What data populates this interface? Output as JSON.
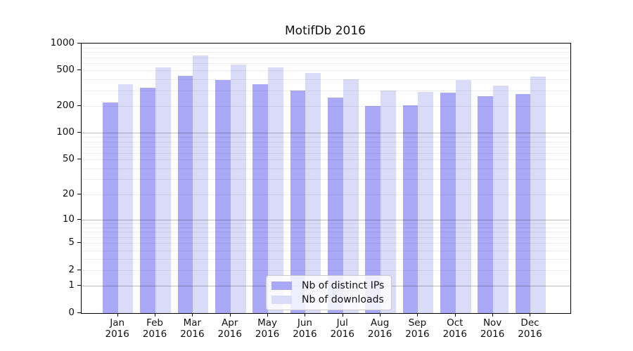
{
  "chart_data": {
    "type": "bar",
    "title": "MotifDb 2016",
    "categories": [
      "Jan",
      "Feb",
      "Mar",
      "Apr",
      "May",
      "Jun",
      "Jul",
      "Aug",
      "Sep",
      "Oct",
      "Nov",
      "Dec"
    ],
    "year_label": "2016",
    "series": [
      {
        "name": "Nb of distinct IPs",
        "color": "#a9a9f7",
        "values": [
          220,
          320,
          435,
          390,
          350,
          300,
          250,
          200,
          205,
          285,
          260,
          275
        ]
      },
      {
        "name": "Nb of downloads",
        "color": "#dadaf9",
        "values": [
          350,
          545,
          740,
          580,
          540,
          470,
          400,
          300,
          290,
          390,
          340,
          425
        ]
      }
    ],
    "y_ticks": [
      1000,
      500,
      200,
      100,
      50,
      20,
      10,
      5,
      2,
      1,
      0
    ],
    "y_scale": "log1p",
    "ylim": [
      0,
      1000
    ],
    "xlabel": "",
    "ylabel": "",
    "grid": true,
    "legend_position": "lower-center",
    "colors": {
      "bar_dark": "#a9a9f7",
      "bar_light": "#dadaf9",
      "spine": "#000000",
      "grid_major": "#bcbcbc",
      "grid_minor": "#ececec",
      "legend_border": "#cccccc"
    }
  }
}
